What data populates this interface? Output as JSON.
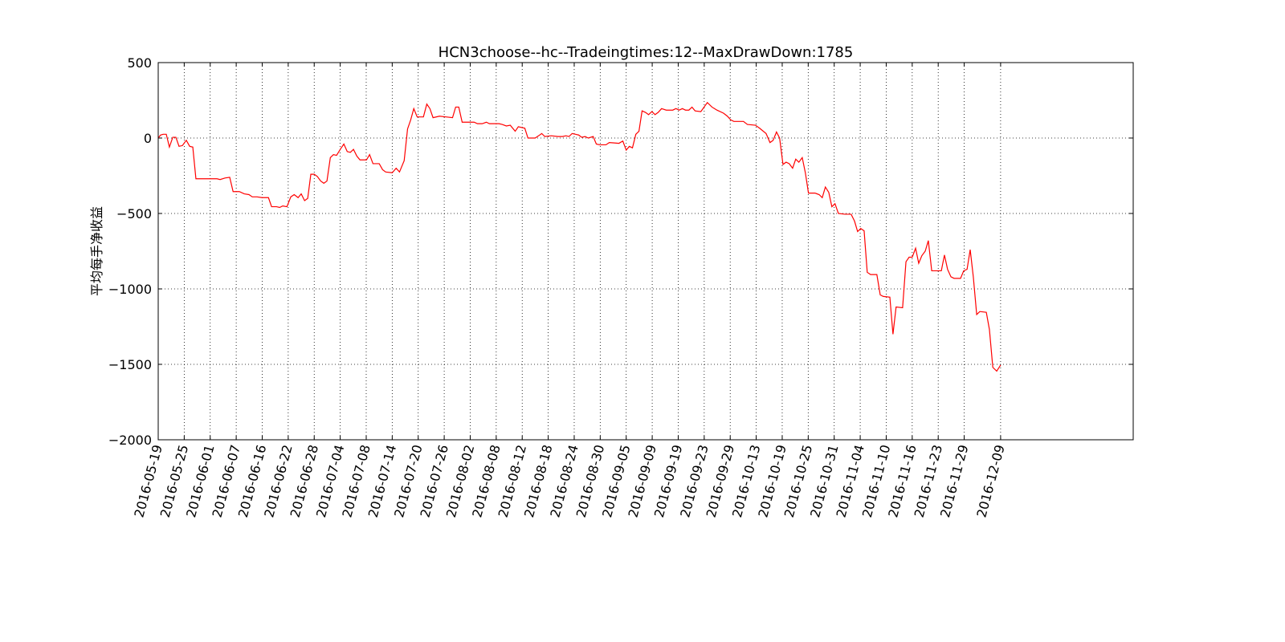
{
  "chart_data": {
    "type": "line",
    "title": "HCN3choose--hc--Tradeingtimes:12--MaxDrawDown:1785",
    "y_label": "平均每手净收益",
    "color": "#ff0000",
    "grid": true,
    "xlim": [
      0,
      375
    ],
    "ylim": [
      -2000,
      500
    ],
    "yticks": [
      {
        "value": -2000,
        "label": "−2000"
      },
      {
        "value": -1500,
        "label": "−1500"
      },
      {
        "value": -1000,
        "label": "−1000"
      },
      {
        "value": -500,
        "label": "−500"
      },
      0,
      500
    ],
    "xticks": [
      {
        "value": 0,
        "label": "2016-05-19"
      },
      {
        "value": 10,
        "label": "2016-05-25"
      },
      {
        "value": 20,
        "label": "2016-06-01"
      },
      {
        "value": 30,
        "label": "2016-06-07"
      },
      {
        "value": 40,
        "label": "2016-06-16"
      },
      {
        "value": 50,
        "label": "2016-06-22"
      },
      {
        "value": 60,
        "label": "2016-06-28"
      },
      {
        "value": 70,
        "label": "2016-07-04"
      },
      {
        "value": 80,
        "label": "2016-07-08"
      },
      {
        "value": 90,
        "label": "2016-07-14"
      },
      {
        "value": 100,
        "label": "2016-07-20"
      },
      {
        "value": 110,
        "label": "2016-07-26"
      },
      {
        "value": 120,
        "label": "2016-08-02"
      },
      {
        "value": 130,
        "label": "2016-08-08"
      },
      {
        "value": 140,
        "label": "2016-08-12"
      },
      {
        "value": 150,
        "label": "2016-08-18"
      },
      {
        "value": 160,
        "label": "2016-08-24"
      },
      {
        "value": 170,
        "label": "2016-08-30"
      },
      {
        "value": 180,
        "label": "2016-09-05"
      },
      {
        "value": 190,
        "label": "2016-09-09"
      },
      {
        "value": 200,
        "label": "2016-09-19"
      },
      {
        "value": 210,
        "label": "2016-09-23"
      },
      {
        "value": 220,
        "label": "2016-09-29"
      },
      {
        "value": 230,
        "label": "2016-10-13"
      },
      {
        "value": 240,
        "label": "2016-10-19"
      },
      {
        "value": 250,
        "label": "2016-10-25"
      },
      {
        "value": 260,
        "label": "2016-10-31"
      },
      {
        "value": 270,
        "label": "2016-11-04"
      },
      {
        "value": 280,
        "label": "2016-11-10"
      },
      {
        "value": 290,
        "label": "2016-11-16"
      },
      {
        "value": 300,
        "label": "2016-11-23"
      },
      {
        "value": 310,
        "label": "2016-11-29"
      },
      {
        "value": 324,
        "label": "2016-12-09"
      }
    ],
    "x": [
      0,
      0.9,
      1.9,
      3.1,
      4.3,
      5.6,
      6.8,
      8.0,
      9.3,
      10.8,
      12.1,
      13.3,
      14.5,
      19.5,
      22.6,
      23.8,
      25.7,
      27.5,
      28.8,
      31.2,
      33.1,
      34.9,
      36.2,
      38.0,
      39.9,
      42.4,
      43.6,
      45.5,
      46.7,
      47.9,
      49.5,
      51.0,
      52.3,
      53.8,
      55.0,
      56.3,
      57.5,
      58.7,
      60.0,
      61.2,
      62.5,
      63.7,
      64.9,
      66.2,
      67.4,
      68.6,
      70.2,
      71.4,
      72.7,
      73.9,
      75.1,
      76.4,
      77.6,
      80.1,
      81.3,
      82.6,
      85.0,
      86.3,
      87.5,
      90.0,
      91.5,
      92.8,
      94.6,
      95.9,
      97.1,
      98.3,
      99.6,
      102.0,
      103.3,
      104.5,
      105.7,
      108.2,
      110.7,
      113.2,
      114.4,
      115.6,
      116.9,
      119.4,
      121.5,
      122.8,
      124.6,
      126.2,
      127.4,
      131.1,
      132.3,
      133.9,
      135.4,
      137.3,
      138.5,
      141.0,
      142.2,
      145.0,
      146.3,
      147.5,
      148.7,
      151.2,
      153.7,
      155.5,
      156.8,
      158.0,
      159.2,
      160.5,
      161.7,
      162.9,
      164.2,
      165.4,
      167.3,
      168.5,
      169.8,
      172.2,
      173.5,
      177.2,
      178.7,
      180.0,
      181.2,
      182.4,
      183.7,
      184.9,
      186.1,
      187.4,
      188.6,
      189.9,
      191.1,
      192.3,
      193.6,
      195.4,
      197.9,
      199.1,
      200.4,
      201.6,
      202.8,
      204.1,
      205.3,
      206.5,
      208.7,
      211.2,
      213.0,
      214.9,
      217.4,
      218.9,
      220.2,
      221.4,
      225.1,
      226.6,
      229.7,
      231.3,
      233.8,
      235.3,
      236.5,
      237.8,
      239.0,
      240.3,
      241.5,
      242.7,
      244.0,
      245.2,
      246.4,
      247.7,
      248.9,
      250.1,
      252.6,
      254.2,
      255.4,
      256.6,
      257.9,
      259.1,
      260.3,
      261.6,
      264.1,
      266.5,
      267.8,
      269.0,
      270.2,
      271.5,
      272.7,
      274.0,
      276.4,
      277.7,
      278.9,
      281.4,
      282.6,
      283.8,
      286.3,
      287.6,
      288.8,
      290.0,
      291.3,
      292.5,
      293.7,
      295.0,
      296.2,
      297.5,
      301.2,
      302.4,
      303.6,
      304.9,
      306.1,
      308.6,
      309.8,
      311.1,
      312.3,
      313.5,
      314.8,
      316.0,
      318.5,
      319.7,
      321.0,
      322.5,
      324.0
    ],
    "values": [
      0,
      20,
      25,
      25,
      -60,
      5,
      5,
      -55,
      -50,
      -15,
      -55,
      -60,
      -270,
      -270,
      -270,
      -275,
      -265,
      -260,
      -355,
      -355,
      -370,
      -375,
      -390,
      -390,
      -395,
      -395,
      -455,
      -455,
      -460,
      -450,
      -455,
      -390,
      -375,
      -395,
      -370,
      -415,
      -400,
      -240,
      -240,
      -255,
      -285,
      -300,
      -285,
      -130,
      -110,
      -115,
      -70,
      -40,
      -90,
      -95,
      -75,
      -120,
      -145,
      -145,
      -110,
      -170,
      -170,
      -210,
      -225,
      -230,
      -200,
      -225,
      -150,
      60,
      120,
      195,
      140,
      140,
      225,
      195,
      135,
      145,
      140,
      135,
      205,
      205,
      105,
      105,
      105,
      95,
      95,
      105,
      95,
      95,
      90,
      80,
      85,
      45,
      75,
      65,
      0,
      0,
      15,
      30,
      10,
      15,
      10,
      10,
      15,
      10,
      30,
      25,
      20,
      5,
      10,
      0,
      10,
      -40,
      -45,
      -45,
      -30,
      -35,
      -20,
      -80,
      -55,
      -65,
      25,
      45,
      180,
      170,
      155,
      175,
      155,
      170,
      195,
      185,
      185,
      195,
      185,
      195,
      185,
      185,
      205,
      180,
      175,
      235,
      205,
      185,
      165,
      145,
      120,
      110,
      110,
      90,
      85,
      65,
      30,
      -30,
      -15,
      40,
      0,
      -175,
      -160,
      -170,
      -200,
      -140,
      -160,
      -130,
      -230,
      -365,
      -365,
      -375,
      -395,
      -325,
      -360,
      -455,
      -435,
      -500,
      -505,
      -505,
      -550,
      -620,
      -600,
      -615,
      -890,
      -905,
      -905,
      -1040,
      -1050,
      -1055,
      -1300,
      -1120,
      -1125,
      -820,
      -790,
      -790,
      -730,
      -830,
      -780,
      -750,
      -680,
      -880,
      -880,
      -775,
      -870,
      -920,
      -930,
      -930,
      -880,
      -870,
      -740,
      -920,
      -1170,
      -1150,
      -1155,
      -1270,
      -1520,
      -1545,
      -1505
    ]
  }
}
